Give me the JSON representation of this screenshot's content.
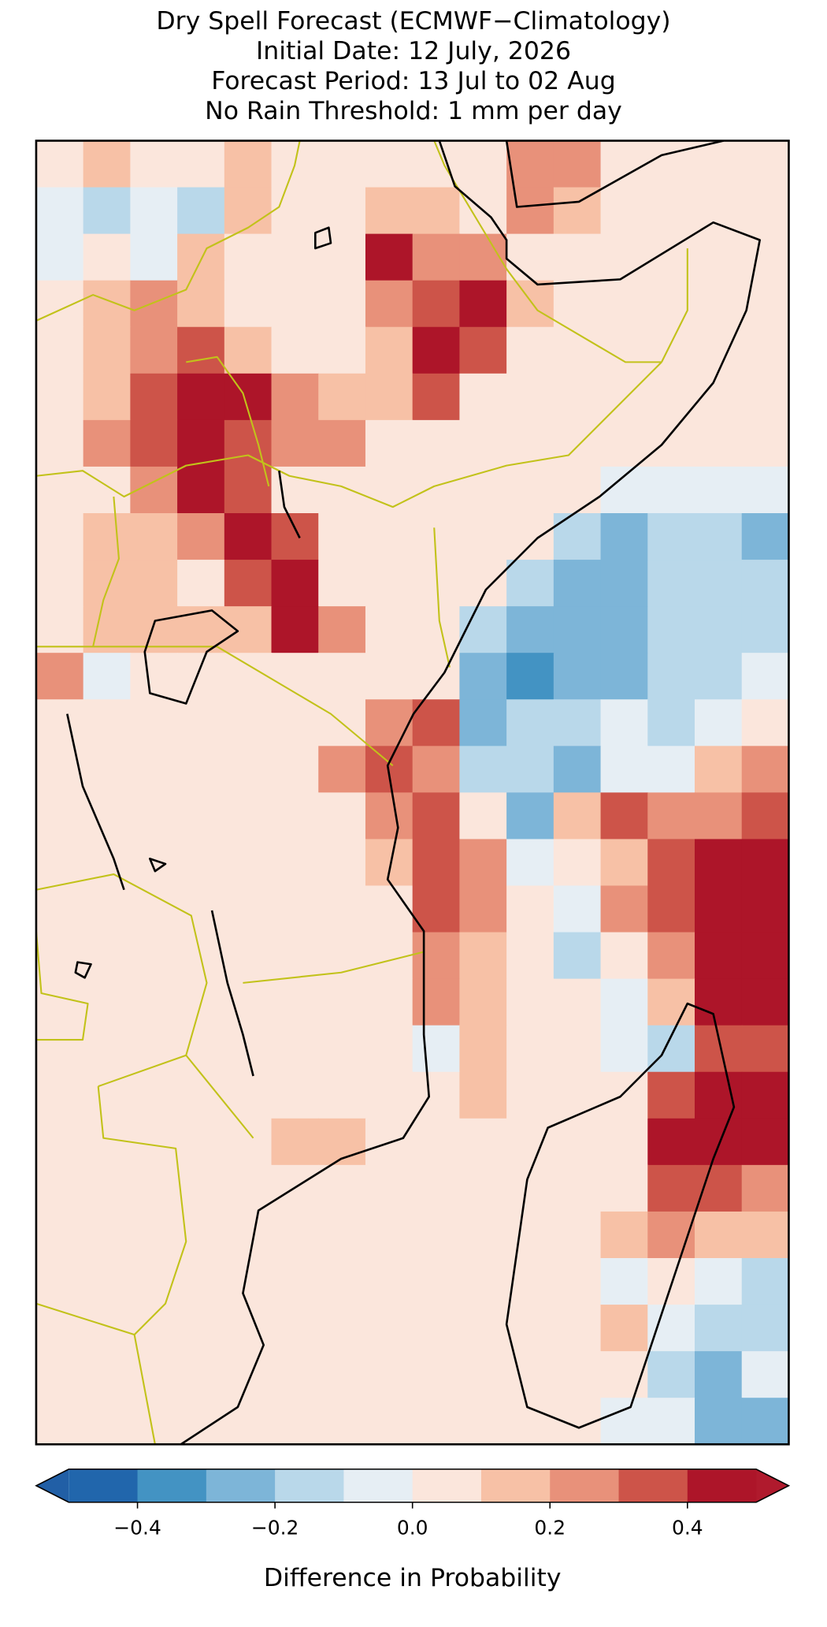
{
  "chart_data": {
    "type": "heatmap",
    "title": [
      "Dry Spell Forecast (ECMWF−Climatology)",
      "Initial Date: 12 July, 2026",
      "Forecast Period: 13 Jul to 02 Aug",
      "No Rain Threshold: 1 mm per day"
    ],
    "values": [
      [
        0.05,
        0.15,
        0.05,
        0.05,
        0.15,
        0.05,
        0.05,
        0.05,
        0.05,
        0.05,
        0.25,
        0.25,
        0.05,
        0.05,
        0.05,
        0.05
      ],
      [
        -0.05,
        -0.15,
        -0.05,
        -0.15,
        0.15,
        0.05,
        0.05,
        0.15,
        0.15,
        0.05,
        0.25,
        0.15,
        0.05,
        0.05,
        0.05,
        0.05
      ],
      [
        -0.05,
        0.05,
        -0.05,
        0.15,
        0.05,
        0.05,
        0.05,
        0.45,
        0.25,
        0.25,
        0.05,
        0.05,
        0.05,
        0.05,
        0.05,
        0.05
      ],
      [
        0.05,
        0.15,
        0.25,
        0.15,
        0.05,
        0.05,
        0.05,
        0.25,
        0.35,
        0.45,
        0.15,
        0.05,
        0.05,
        0.05,
        0.05,
        0.05
      ],
      [
        0.05,
        0.15,
        0.25,
        0.35,
        0.15,
        0.05,
        0.05,
        0.15,
        0.45,
        0.35,
        0.05,
        0.05,
        0.05,
        0.05,
        0.05,
        0.05
      ],
      [
        0.05,
        0.15,
        0.35,
        0.45,
        0.45,
        0.25,
        0.15,
        0.15,
        0.35,
        0.05,
        0.05,
        0.05,
        0.05,
        0.05,
        0.05,
        0.05
      ],
      [
        0.05,
        0.25,
        0.35,
        0.45,
        0.35,
        0.25,
        0.25,
        0.05,
        0.05,
        0.05,
        0.05,
        0.05,
        0.05,
        0.05,
        0.05,
        0.05
      ],
      [
        0.05,
        0.05,
        0.25,
        0.45,
        0.35,
        0.05,
        0.05,
        0.05,
        0.05,
        0.05,
        0.05,
        0.05,
        -0.05,
        -0.05,
        -0.05,
        -0.05
      ],
      [
        0.05,
        0.15,
        0.15,
        0.25,
        0.45,
        0.35,
        0.05,
        0.05,
        0.05,
        0.05,
        0.05,
        -0.15,
        -0.25,
        -0.15,
        -0.15,
        -0.25
      ],
      [
        0.05,
        0.15,
        0.15,
        0.05,
        0.35,
        0.45,
        0.05,
        0.05,
        0.05,
        0.05,
        -0.15,
        -0.25,
        -0.25,
        -0.15,
        -0.15,
        -0.15
      ],
      [
        0.05,
        0.15,
        0.15,
        0.15,
        0.15,
        0.45,
        0.25,
        0.05,
        0.05,
        -0.15,
        -0.25,
        -0.25,
        -0.25,
        -0.15,
        -0.15,
        -0.15
      ],
      [
        0.25,
        -0.05,
        0.05,
        0.05,
        0.05,
        0.05,
        0.05,
        0.05,
        0.05,
        -0.25,
        -0.35,
        -0.25,
        -0.25,
        -0.15,
        -0.15,
        -0.05
      ],
      [
        0.05,
        0.05,
        0.05,
        0.05,
        0.05,
        0.05,
        0.05,
        0.25,
        0.35,
        -0.25,
        -0.15,
        -0.15,
        -0.05,
        -0.15,
        -0.05,
        0.05
      ],
      [
        0.05,
        0.05,
        0.05,
        0.05,
        0.05,
        0.05,
        0.25,
        0.35,
        0.25,
        -0.15,
        -0.15,
        -0.25,
        -0.05,
        -0.05,
        0.15,
        0.25
      ],
      [
        0.05,
        0.05,
        0.05,
        0.05,
        0.05,
        0.05,
        0.05,
        0.25,
        0.35,
        0.05,
        -0.25,
        0.15,
        0.35,
        0.25,
        0.25,
        0.35
      ],
      [
        0.05,
        0.05,
        0.05,
        0.05,
        0.05,
        0.05,
        0.05,
        0.15,
        0.35,
        0.25,
        -0.05,
        0.05,
        0.15,
        0.35,
        0.45,
        0.45
      ],
      [
        0.05,
        0.05,
        0.05,
        0.05,
        0.05,
        0.05,
        0.05,
        0.05,
        0.35,
        0.25,
        0.05,
        -0.05,
        0.25,
        0.35,
        0.45,
        0.45
      ],
      [
        0.05,
        0.05,
        0.05,
        0.05,
        0.05,
        0.05,
        0.05,
        0.05,
        0.25,
        0.15,
        0.05,
        -0.15,
        0.05,
        0.25,
        0.45,
        0.45
      ],
      [
        0.05,
        0.05,
        0.05,
        0.05,
        0.05,
        0.05,
        0.05,
        0.05,
        0.25,
        0.15,
        0.05,
        0.05,
        -0.05,
        0.15,
        0.45,
        0.45
      ],
      [
        0.05,
        0.05,
        0.05,
        0.05,
        0.05,
        0.05,
        0.05,
        0.05,
        -0.05,
        0.15,
        0.05,
        0.05,
        -0.05,
        -0.15,
        0.35,
        0.35
      ],
      [
        0.05,
        0.05,
        0.05,
        0.05,
        0.05,
        0.05,
        0.05,
        0.05,
        0.05,
        0.15,
        0.05,
        0.05,
        0.05,
        0.35,
        0.45,
        0.45
      ],
      [
        0.05,
        0.05,
        0.05,
        0.05,
        0.05,
        0.15,
        0.15,
        0.05,
        0.05,
        0.05,
        0.05,
        0.05,
        0.05,
        0.45,
        0.45,
        0.45
      ],
      [
        0.05,
        0.05,
        0.05,
        0.05,
        0.05,
        0.05,
        0.05,
        0.05,
        0.05,
        0.05,
        0.05,
        0.05,
        0.05,
        0.35,
        0.35,
        0.25
      ],
      [
        0.05,
        0.05,
        0.05,
        0.05,
        0.05,
        0.05,
        0.05,
        0.05,
        0.05,
        0.05,
        0.05,
        0.05,
        0.15,
        0.25,
        0.15,
        0.15
      ],
      [
        0.05,
        0.05,
        0.05,
        0.05,
        0.05,
        0.05,
        0.05,
        0.05,
        0.05,
        0.05,
        0.05,
        0.05,
        -0.05,
        0.05,
        -0.05,
        -0.15
      ],
      [
        0.05,
        0.05,
        0.05,
        0.05,
        0.05,
        0.05,
        0.05,
        0.05,
        0.05,
        0.05,
        0.05,
        0.05,
        0.15,
        -0.05,
        -0.15,
        -0.15
      ],
      [
        0.05,
        0.05,
        0.05,
        0.05,
        0.05,
        0.05,
        0.05,
        0.05,
        0.05,
        0.05,
        0.05,
        0.05,
        0.05,
        -0.15,
        -0.25,
        -0.05
      ],
      [
        0.05,
        0.05,
        0.05,
        0.05,
        0.05,
        0.05,
        0.05,
        0.05,
        0.05,
        0.05,
        0.05,
        0.05,
        -0.05,
        -0.05,
        -0.25,
        -0.25
      ]
    ],
    "colorbar": {
      "boundaries": [
        -0.5,
        -0.4,
        -0.3,
        -0.2,
        -0.1,
        0,
        0.1,
        0.2,
        0.3,
        0.4,
        0.5
      ],
      "colors": [
        "#2166ac",
        "#4393c3",
        "#7db5d8",
        "#b9d8ea",
        "#e6eef4",
        "#fbe6dc",
        "#f7c1a6",
        "#e8917a",
        "#cd5449",
        "#ad1529"
      ],
      "under_color": "#215fa6",
      "over_color": "#b01a2d",
      "ticks": [
        {
          "value": -0.4,
          "label": "−0.4"
        },
        {
          "value": -0.2,
          "label": "−0.2"
        },
        {
          "value": 0,
          "label": "0.0"
        },
        0.2,
        0.4
      ],
      "label": "Difference in Probability"
    }
  }
}
